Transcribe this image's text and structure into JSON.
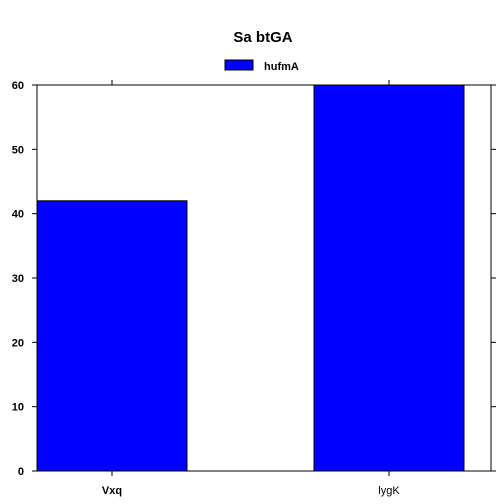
{
  "chart_data": {
    "type": "bar",
    "title": "Sa  btGA",
    "categories": [
      "Vxq",
      "lygK"
    ],
    "series": [
      {
        "name": "hufmA",
        "values": [
          42,
          60
        ],
        "color": "#0000ff"
      }
    ],
    "ylim": [
      0,
      60
    ],
    "yticks": [
      0,
      10,
      20,
      30,
      40,
      50,
      60
    ],
    "grid": false,
    "legend_position": "top-center"
  }
}
